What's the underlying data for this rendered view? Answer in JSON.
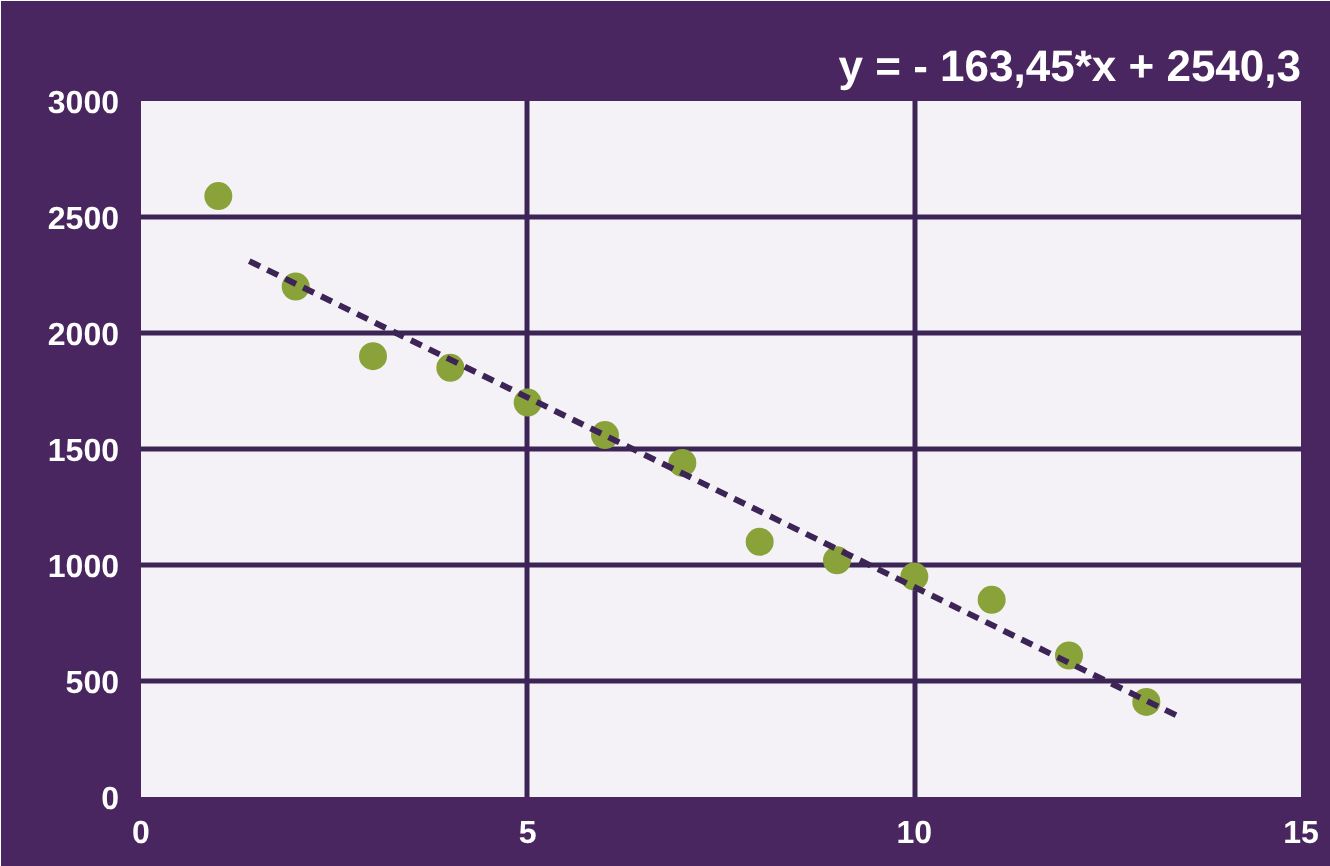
{
  "chart_data": {
    "type": "scatter",
    "title": "y = - 163,45*x + 2540,3",
    "x": [
      1,
      2,
      3,
      4,
      5,
      6,
      7,
      8,
      9,
      10,
      11,
      12,
      13
    ],
    "series": [
      {
        "color": "#8aa23a",
        "marker": "circle",
        "values": [
          2590,
          2200,
          1900,
          1850,
          1700,
          1560,
          1440,
          1100,
          1020,
          950,
          850,
          610,
          410
        ]
      },
      {
        "type": "line",
        "color": "#3d2456",
        "line_style": "dashed",
        "marker": "none",
        "x": [
          1.4,
          13.4
        ],
        "values": [
          2310,
          350
        ]
      }
    ],
    "xlim": [
      0,
      15
    ],
    "ylim": [
      0,
      3000
    ],
    "xticks": [
      0,
      5,
      10,
      15
    ],
    "yticks": [
      0,
      500,
      1000,
      1500,
      2000,
      2500,
      3000
    ],
    "grid": true
  }
}
